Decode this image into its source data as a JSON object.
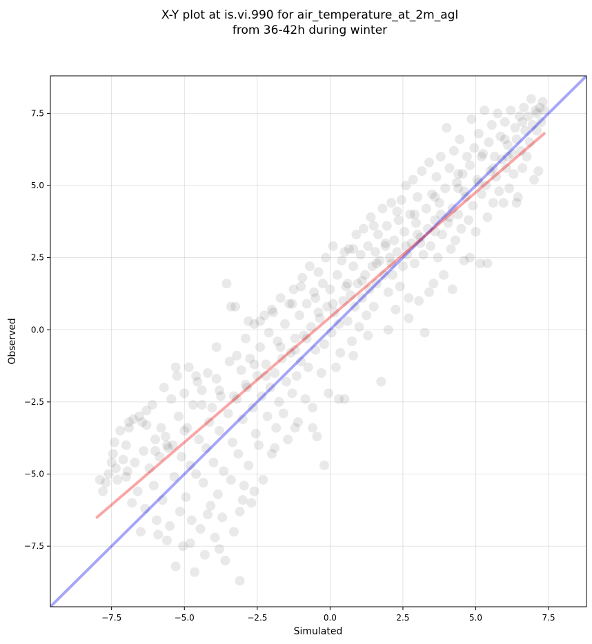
{
  "chart_data": {
    "type": "scatter",
    "title_lines": [
      "X-Y plot at is.vi.990 for air_temperature_at_2m_agl",
      "from 36-42h during winter"
    ],
    "xlabel": "Simulated",
    "ylabel": "Observed",
    "xlim": [
      -9.6,
      8.8
    ],
    "ylim": [
      -9.6,
      8.8
    ],
    "xticks": [
      -7.5,
      -5.0,
      -2.5,
      0.0,
      2.5,
      5.0,
      7.5
    ],
    "yticks": [
      -7.5,
      -5.0,
      -2.5,
      0.0,
      2.5,
      5.0,
      7.5
    ],
    "xtick_labels": [
      "−7.5",
      "−5.0",
      "−2.5",
      "0.0",
      "2.5",
      "5.0",
      "7.5"
    ],
    "ytick_labels": [
      "−7.5",
      "−5.0",
      "−2.5",
      "0.0",
      "2.5",
      "5.0",
      "7.5"
    ],
    "grid": true,
    "point_color": "#555555",
    "point_opacity": 0.13,
    "identity_line": {
      "color": "#0000ee",
      "opacity": 0.35,
      "from": [
        -9.6,
        -9.6
      ],
      "to": [
        8.8,
        8.8
      ]
    },
    "fit_line": {
      "color": "#ee0000",
      "opacity": 0.35,
      "from": [
        -8.0,
        -6.5
      ],
      "to": [
        7.35,
        6.8
      ]
    },
    "points": [
      [
        -7.9,
        -5.2
      ],
      [
        -7.7,
        -5.3
      ],
      [
        -7.6,
        -5.0
      ],
      [
        -7.5,
        -4.6
      ],
      [
        -7.45,
        -4.3
      ],
      [
        -7.4,
        -3.9
      ],
      [
        -7.35,
        -4.8
      ],
      [
        -7.3,
        -5.2
      ],
      [
        -7.2,
        -3.5
      ],
      [
        -7.1,
        -4.5
      ],
      [
        -7.0,
        -4.0
      ],
      [
        -6.95,
        -4.9
      ],
      [
        -6.9,
        -3.2
      ],
      [
        -6.8,
        -6.0
      ],
      [
        -6.75,
        -3.1
      ],
      [
        -6.7,
        -4.6
      ],
      [
        -6.6,
        -5.6
      ],
      [
        -6.55,
        -3.0
      ],
      [
        -6.5,
        -7.0
      ],
      [
        -6.45,
        -3.2
      ],
      [
        -6.4,
        -4.2
      ],
      [
        -6.35,
        -6.2
      ],
      [
        -6.3,
        -3.3
      ],
      [
        -6.2,
        -4.8
      ],
      [
        -6.1,
        -2.6
      ],
      [
        -6.05,
        -5.4
      ],
      [
        -6.0,
        -3.8
      ],
      [
        -5.95,
        -6.6
      ],
      [
        -5.9,
        -7.1
      ],
      [
        -5.85,
        -4.4
      ],
      [
        -5.8,
        -3.4
      ],
      [
        -5.75,
        -5.9
      ],
      [
        -5.7,
        -2.0
      ],
      [
        -5.65,
        -3.7
      ],
      [
        -5.6,
        -7.3
      ],
      [
        -5.55,
        -4.1
      ],
      [
        -5.5,
        -6.8
      ],
      [
        -5.45,
        -2.4
      ],
      [
        -5.4,
        -4.0
      ],
      [
        -5.35,
        -5.1
      ],
      [
        -5.3,
        -8.2
      ],
      [
        -5.25,
        -1.6
      ],
      [
        -5.2,
        -3.0
      ],
      [
        -5.15,
        -6.3
      ],
      [
        -5.1,
        -4.4
      ],
      [
        -5.05,
        -7.5
      ],
      [
        -5.0,
        -2.2
      ],
      [
        -4.95,
        -5.8
      ],
      [
        -4.9,
        -3.4
      ],
      [
        -4.85,
        -1.3
      ],
      [
        -4.8,
        -4.7
      ],
      [
        -4.75,
        -6.6
      ],
      [
        -4.7,
        -2.6
      ],
      [
        -4.65,
        -8.4
      ],
      [
        -4.6,
        -5.0
      ],
      [
        -4.55,
        -1.8
      ],
      [
        -4.5,
        -3.8
      ],
      [
        -4.45,
        -6.9
      ],
      [
        -4.4,
        -2.1
      ],
      [
        -4.35,
        -5.3
      ],
      [
        -4.3,
        -7.8
      ],
      [
        -4.25,
        -4.1
      ],
      [
        -4.2,
        -1.5
      ],
      [
        -4.15,
        -3.2
      ],
      [
        -4.1,
        -6.1
      ],
      [
        -4.05,
        -2.7
      ],
      [
        -4.0,
        -4.6
      ],
      [
        -3.95,
        -7.2
      ],
      [
        -3.9,
        -1.7
      ],
      [
        -3.85,
        -5.7
      ],
      [
        -3.8,
        -3.5
      ],
      [
        -3.75,
        -2.3
      ],
      [
        -3.7,
        -6.5
      ],
      [
        -3.65,
        -4.9
      ],
      [
        -3.6,
        -8.0
      ],
      [
        -3.55,
        1.6
      ],
      [
        -3.5,
        -2.9
      ],
      [
        -3.45,
        -1.1
      ],
      [
        -3.4,
        -5.2
      ],
      [
        -3.35,
        -3.9
      ],
      [
        -3.3,
        -7.0
      ],
      [
        -3.25,
        0.8
      ],
      [
        -3.2,
        -2.4
      ],
      [
        -3.15,
        -4.3
      ],
      [
        -3.1,
        -6.3
      ],
      [
        -3.05,
        -1.4
      ],
      [
        -3.0,
        -3.1
      ],
      [
        -2.95,
        -5.4
      ],
      [
        -2.9,
        -0.3
      ],
      [
        -2.85,
        -2.0
      ],
      [
        -2.8,
        -4.7
      ],
      [
        -2.75,
        -1.0
      ],
      [
        -2.7,
        -6.0
      ],
      [
        -2.65,
        -2.7
      ],
      [
        -2.6,
        0.2
      ],
      [
        -2.55,
        -3.6
      ],
      [
        -2.5,
        -1.6
      ],
      [
        -2.45,
        -4.0
      ],
      [
        -2.4,
        -0.6
      ],
      [
        -2.35,
        -2.3
      ],
      [
        -2.3,
        -5.2
      ],
      [
        -2.25,
        0.5
      ],
      [
        -2.2,
        -1.2
      ],
      [
        -2.15,
        -3.0
      ],
      [
        -2.1,
        -0.1
      ],
      [
        -2.05,
        -2.0
      ],
      [
        -2.0,
        -4.3
      ],
      [
        -1.95,
        0.6
      ],
      [
        -1.9,
        -1.5
      ],
      [
        -1.85,
        -3.4
      ],
      [
        -1.8,
        -0.4
      ],
      [
        -1.75,
        -2.5
      ],
      [
        -1.7,
        1.1
      ],
      [
        -1.65,
        -1.0
      ],
      [
        -1.6,
        -2.9
      ],
      [
        -1.55,
        0.2
      ],
      [
        -1.5,
        -1.8
      ],
      [
        -1.45,
        -3.8
      ],
      [
        -1.4,
        0.9
      ],
      [
        -1.35,
        -0.8
      ],
      [
        -1.3,
        -2.2
      ],
      [
        -1.25,
        1.4
      ],
      [
        -1.2,
        -0.3
      ],
      [
        -1.15,
        -1.6
      ],
      [
        -1.1,
        -3.2
      ],
      [
        -1.05,
        0.5
      ],
      [
        -1.0,
        -1.1
      ],
      [
        -0.95,
        1.8
      ],
      [
        -0.9,
        -0.2
      ],
      [
        -0.85,
        -2.4
      ],
      [
        -0.8,
        0.9
      ],
      [
        -0.75,
        -1.3
      ],
      [
        -0.7,
        2.2
      ],
      [
        -0.65,
        0.1
      ],
      [
        -0.6,
        -2.7
      ],
      [
        -0.55,
        1.3
      ],
      [
        -0.5,
        -0.7
      ],
      [
        -0.45,
        -3.7
      ],
      [
        -0.4,
        2.0
      ],
      [
        -0.35,
        0.4
      ],
      [
        -0.3,
        -1.5
      ],
      [
        -0.25,
        1.6
      ],
      [
        -0.2,
        -0.5
      ],
      [
        -0.15,
        2.5
      ],
      [
        -0.1,
        0.8
      ],
      [
        -0.05,
        -2.2
      ],
      [
        0.0,
        1.4
      ],
      [
        0.05,
        -0.1
      ],
      [
        0.1,
        2.9
      ],
      [
        0.15,
        0.6
      ],
      [
        0.2,
        -1.3
      ],
      [
        0.25,
        1.9
      ],
      [
        0.3,
        0.2
      ],
      [
        0.35,
        -0.8
      ],
      [
        0.4,
        2.4
      ],
      [
        0.45,
        1.0
      ],
      [
        0.5,
        -2.4
      ],
      [
        0.55,
        1.5
      ],
      [
        0.6,
        0.3
      ],
      [
        0.65,
        2.8
      ],
      [
        0.7,
        1.2
      ],
      [
        0.75,
        -0.4
      ],
      [
        0.8,
        2.2
      ],
      [
        0.85,
        0.8
      ],
      [
        0.9,
        3.3
      ],
      [
        0.95,
        1.6
      ],
      [
        1.0,
        0.1
      ],
      [
        1.05,
        2.6
      ],
      [
        1.1,
        1.1
      ],
      [
        1.15,
        3.5
      ],
      [
        1.2,
        1.9
      ],
      [
        1.25,
        0.5
      ],
      [
        1.3,
        2.9
      ],
      [
        1.35,
        1.4
      ],
      [
        1.4,
        3.9
      ],
      [
        1.45,
        2.2
      ],
      [
        1.5,
        0.8
      ],
      [
        1.55,
        2.7
      ],
      [
        1.6,
        1.6
      ],
      [
        1.65,
        3.3
      ],
      [
        1.7,
        2.4
      ],
      [
        1.75,
        -1.8
      ],
      [
        1.8,
        4.2
      ],
      [
        1.85,
        1.9
      ],
      [
        1.9,
        2.9
      ],
      [
        1.95,
        3.6
      ],
      [
        2.0,
        1.3
      ],
      [
        2.05,
        2.5
      ],
      [
        2.1,
        4.4
      ],
      [
        2.15,
        1.9
      ],
      [
        2.2,
        3.1
      ],
      [
        2.25,
        0.7
      ],
      [
        2.3,
        2.7
      ],
      [
        2.35,
        3.8
      ],
      [
        2.4,
        1.5
      ],
      [
        2.45,
        4.5
      ],
      [
        2.5,
        2.2
      ],
      [
        2.55,
        3.4
      ],
      [
        2.6,
        5.0
      ],
      [
        2.65,
        2.6
      ],
      [
        2.7,
        1.1
      ],
      [
        2.75,
        4.0
      ],
      [
        2.8,
        3.0
      ],
      [
        2.85,
        5.2
      ],
      [
        2.9,
        2.3
      ],
      [
        2.95,
        3.7
      ],
      [
        3.0,
        4.6
      ],
      [
        3.05,
        1.0
      ],
      [
        3.1,
        3.2
      ],
      [
        3.15,
        5.5
      ],
      [
        3.2,
        2.6
      ],
      [
        3.25,
        -0.1
      ],
      [
        3.3,
        4.2
      ],
      [
        3.35,
        3.5
      ],
      [
        3.4,
        5.8
      ],
      [
        3.45,
        2.9
      ],
      [
        3.5,
        4.7
      ],
      [
        3.55,
        1.6
      ],
      [
        3.6,
        3.8
      ],
      [
        3.65,
        5.3
      ],
      [
        3.7,
        2.5
      ],
      [
        3.75,
        4.4
      ],
      [
        3.8,
        6.0
      ],
      [
        3.85,
        3.3
      ],
      [
        3.9,
        1.9
      ],
      [
        3.95,
        4.9
      ],
      [
        4.0,
        7.0
      ],
      [
        4.05,
        3.7
      ],
      [
        4.1,
        5.6
      ],
      [
        4.15,
        2.8
      ],
      [
        4.2,
        4.2
      ],
      [
        4.25,
        6.2
      ],
      [
        4.3,
        3.1
      ],
      [
        4.35,
        5.1
      ],
      [
        4.4,
        4.0
      ],
      [
        4.45,
        6.6
      ],
      [
        4.5,
        3.5
      ],
      [
        4.55,
        5.4
      ],
      [
        4.6,
        2.4
      ],
      [
        4.65,
        4.6
      ],
      [
        4.7,
        6.0
      ],
      [
        4.75,
        3.8
      ],
      [
        4.8,
        5.7
      ],
      [
        4.85,
        7.3
      ],
      [
        4.9,
        4.3
      ],
      [
        4.95,
        6.3
      ],
      [
        5.0,
        3.4
      ],
      [
        5.05,
        5.2
      ],
      [
        5.1,
        6.8
      ],
      [
        5.15,
        2.3
      ],
      [
        5.2,
        4.7
      ],
      [
        5.25,
        6.1
      ],
      [
        5.3,
        7.6
      ],
      [
        5.35,
        5.0
      ],
      [
        5.4,
        3.9
      ],
      [
        5.45,
        6.5
      ],
      [
        5.5,
        5.5
      ],
      [
        5.55,
        7.1
      ],
      [
        5.6,
        4.4
      ],
      [
        5.65,
        6.0
      ],
      [
        5.7,
        5.3
      ],
      [
        5.75,
        7.5
      ],
      [
        5.8,
        4.8
      ],
      [
        5.85,
        6.7
      ],
      [
        5.9,
        5.9
      ],
      [
        5.95,
        4.4
      ],
      [
        6.0,
        7.2
      ],
      [
        6.05,
        5.6
      ],
      [
        6.1,
        6.4
      ],
      [
        6.15,
        4.9
      ],
      [
        6.2,
        7.6
      ],
      [
        6.25,
        6.1
      ],
      [
        6.3,
        5.4
      ],
      [
        6.35,
        7.0
      ],
      [
        6.4,
        6.6
      ],
      [
        6.45,
        4.6
      ],
      [
        6.5,
        7.4
      ],
      [
        6.55,
        6.2
      ],
      [
        6.6,
        5.6
      ],
      [
        6.65,
        7.7
      ],
      [
        6.7,
        6.9
      ],
      [
        6.75,
        6.0
      ],
      [
        6.8,
        7.4
      ],
      [
        6.85,
        6.5
      ],
      [
        6.9,
        8.0
      ],
      [
        6.95,
        7.1
      ],
      [
        7.0,
        5.2
      ],
      [
        7.05,
        7.6
      ],
      [
        7.1,
        6.9
      ],
      [
        7.15,
        5.5
      ],
      [
        7.2,
        7.7
      ],
      [
        7.25,
        7.2
      ],
      [
        7.3,
        7.9
      ],
      [
        7.35,
        7.6
      ],
      [
        -6.0,
        -4.2
      ],
      [
        -5.6,
        -4.0
      ],
      [
        -5.0,
        -3.5
      ],
      [
        -4.4,
        -2.6
      ],
      [
        -3.8,
        -2.1
      ],
      [
        -3.3,
        -2.3
      ],
      [
        -2.9,
        -1.9
      ],
      [
        -2.6,
        -1.2
      ],
      [
        -2.2,
        -1.6
      ],
      [
        -1.7,
        -0.6
      ],
      [
        -1.2,
        -0.7
      ],
      [
        -0.8,
        -0.3
      ],
      [
        -0.4,
        0.6
      ],
      [
        0.1,
        0.9
      ],
      [
        0.6,
        1.6
      ],
      [
        1.1,
        1.7
      ],
      [
        1.6,
        2.3
      ],
      [
        2.1,
        2.3
      ],
      [
        2.6,
        2.9
      ],
      [
        3.1,
        3.0
      ],
      [
        3.6,
        3.4
      ],
      [
        4.1,
        3.9
      ],
      [
        4.6,
        4.8
      ],
      [
        5.1,
        5.1
      ],
      [
        5.6,
        5.6
      ],
      [
        6.1,
        6.0
      ],
      [
        -3.4,
        0.8
      ],
      [
        -2.8,
        0.3
      ],
      [
        -2.0,
        0.7
      ],
      [
        -1.0,
        1.5
      ],
      [
        0.5,
        2.7
      ],
      [
        1.5,
        3.6
      ],
      [
        2.3,
        4.1
      ],
      [
        3.0,
        3.3
      ],
      [
        3.8,
        4.0
      ],
      [
        4.4,
        4.9
      ],
      [
        -4.8,
        -7.4
      ],
      [
        -4.2,
        -6.4
      ],
      [
        -3.8,
        -7.6
      ],
      [
        -3.1,
        -8.7
      ],
      [
        -3.0,
        -5.9
      ],
      [
        -2.6,
        -5.6
      ],
      [
        -1.9,
        -4.1
      ],
      [
        -1.2,
        -3.4
      ],
      [
        -0.6,
        -3.4
      ],
      [
        -0.2,
        -4.7
      ],
      [
        0.3,
        -2.4
      ],
      [
        0.8,
        -0.9
      ],
      [
        1.3,
        -0.2
      ],
      [
        2.0,
        0.0
      ],
      [
        2.7,
        0.4
      ],
      [
        3.4,
        1.3
      ],
      [
        4.2,
        1.4
      ],
      [
        4.8,
        2.5
      ],
      [
        5.4,
        2.3
      ],
      [
        6.4,
        4.4
      ],
      [
        -6.9,
        -3.4
      ],
      [
        -6.3,
        -2.8
      ],
      [
        -5.3,
        -1.3
      ],
      [
        -4.6,
        -1.6
      ],
      [
        -3.9,
        -0.6
      ],
      [
        -3.2,
        -0.9
      ],
      [
        -2.4,
        0.3
      ],
      [
        -1.3,
        0.9
      ],
      [
        -0.5,
        1.1
      ],
      [
        0.8,
        2.8
      ],
      [
        1.9,
        3.0
      ],
      [
        2.9,
        4.0
      ],
      [
        3.6,
        4.6
      ],
      [
        4.4,
        5.4
      ],
      [
        5.2,
        6.0
      ],
      [
        6.0,
        6.6
      ],
      [
        6.6,
        7.2
      ],
      [
        7.1,
        7.5
      ],
      [
        -7.8,
        -5.6
      ],
      [
        -7.0,
        -5.1
      ]
    ]
  }
}
